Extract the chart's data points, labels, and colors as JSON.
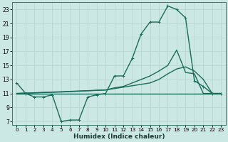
{
  "xlabel": "Humidex (Indice chaleur)",
  "background_color": "#cce8e4",
  "line_color": "#1a6b5a",
  "grid_color": "#b8d8d4",
  "xlim": [
    -0.5,
    23.5
  ],
  "ylim": [
    6.5,
    24.0
  ],
  "xticks": [
    0,
    1,
    2,
    3,
    4,
    5,
    6,
    7,
    8,
    9,
    10,
    11,
    12,
    13,
    14,
    15,
    16,
    17,
    18,
    19,
    20,
    21,
    22,
    23
  ],
  "yticks": [
    7,
    9,
    11,
    13,
    15,
    17,
    19,
    21,
    23
  ],
  "line1_x": [
    0,
    1,
    2,
    3,
    4,
    5,
    6,
    7,
    8,
    9,
    10,
    11,
    12,
    13,
    14,
    15,
    16,
    17,
    18,
    19,
    20,
    21,
    22,
    23
  ],
  "line1_y": [
    12.5,
    11.0,
    10.5,
    10.5,
    10.8,
    7.0,
    7.2,
    7.2,
    10.5,
    10.8,
    11.0,
    13.5,
    13.5,
    16.0,
    19.5,
    21.2,
    21.2,
    23.5,
    23.0,
    21.8,
    12.8,
    12.0,
    11.0,
    11.0
  ],
  "line2_x": [
    0,
    23
  ],
  "line2_y": [
    11.0,
    11.0
  ],
  "line3_x": [
    0,
    10,
    11,
    12,
    13,
    14,
    15,
    16,
    17,
    18,
    19,
    20,
    21,
    22,
    23
  ],
  "line3_y": [
    11.0,
    11.5,
    11.8,
    12.0,
    12.5,
    13.0,
    13.5,
    14.2,
    15.0,
    17.2,
    14.0,
    13.8,
    11.0,
    11.0,
    11.0
  ],
  "line4_x": [
    0,
    5,
    10,
    15,
    16,
    17,
    18,
    19,
    20,
    21,
    22,
    23
  ],
  "line4_y": [
    11.0,
    11.2,
    11.5,
    12.5,
    13.0,
    13.8,
    14.5,
    14.8,
    14.2,
    13.0,
    11.0,
    11.0
  ],
  "markersize": 3,
  "linewidth": 1.0
}
